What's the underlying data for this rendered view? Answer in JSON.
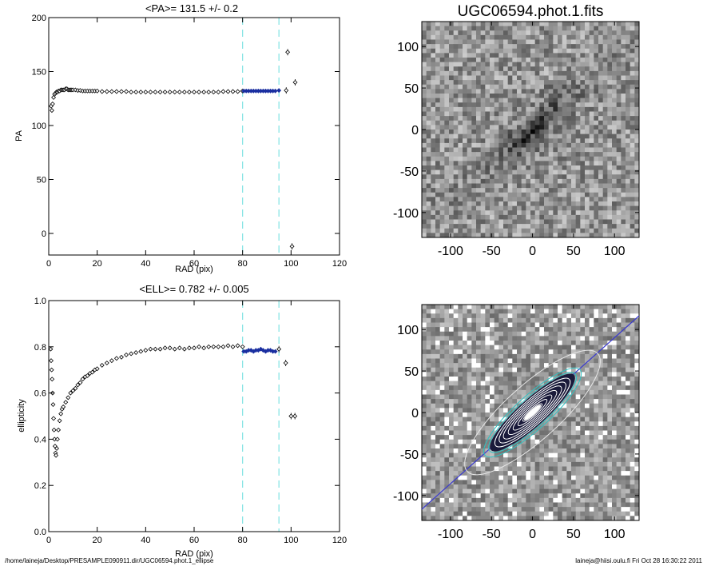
{
  "footer": {
    "path": "/home/laineja/Desktop/PRESAMPLE090911.dir/UGC06594.phot.1_ellipse",
    "stamp": "laineja@hiisi.oulu.fi  Fri Oct 28 16:30:22 2011"
  },
  "colors": {
    "marker": "#000000",
    "highlight": "#1a2fa0",
    "dash": "#7fe3e3",
    "isophote": "#2ec4c4",
    "guide": "#3a3ad0"
  },
  "chart_data": [
    {
      "id": "pa",
      "type": "scatter",
      "title": "<PA>= 131.5 +/-   0.2",
      "xlabel": "RAD (pix)",
      "ylabel": "PA",
      "xlim": [
        0,
        120
      ],
      "ylim": [
        -20,
        200
      ],
      "xticks": [
        "0",
        "20",
        "40",
        "60",
        "80",
        "100",
        "120"
      ],
      "yticks": [
        "0",
        "50",
        "100",
        "150",
        "200"
      ],
      "vlines": [
        80,
        95
      ],
      "series": [
        {
          "x": [
            1,
            1.3,
            1.6,
            2,
            2.4,
            2.8,
            3.2,
            3.6,
            4,
            4.5,
            5,
            5.5,
            6,
            6.5,
            7,
            7.5,
            8,
            8.5,
            9,
            9.5,
            10,
            11,
            12,
            13,
            14,
            15,
            16,
            17,
            18,
            19,
            20,
            22,
            24,
            26,
            28,
            30,
            32,
            34,
            36,
            38,
            40,
            42,
            44,
            46,
            48,
            50,
            52,
            54,
            56,
            58,
            60,
            62,
            64,
            66,
            68,
            70,
            72,
            74,
            76,
            78,
            80
          ],
          "y": [
            118,
            114,
            120,
            126,
            129,
            130,
            131,
            131,
            132,
            132,
            133,
            133,
            133,
            133,
            134,
            134,
            133,
            133,
            133,
            133,
            133,
            133,
            132.5,
            132.5,
            132,
            132,
            132,
            132,
            132,
            132,
            132,
            131.5,
            131.5,
            131.5,
            131.5,
            131.5,
            131.5,
            131,
            131,
            131,
            131,
            131,
            131,
            131,
            131,
            131,
            131,
            131,
            131,
            131,
            131,
            131,
            131,
            131,
            131,
            131,
            131.5,
            131.5,
            131.5,
            131.5,
            132
          ]
        },
        {
          "x": [
            80.5,
            81.5,
            82.5,
            83.5,
            84.5,
            85.5,
            86.5,
            87.5,
            88.5,
            89.5,
            90.5,
            91.5,
            92.5,
            93.5,
            95
          ],
          "y": [
            132,
            132,
            132,
            132,
            132,
            132,
            132,
            132,
            132,
            132,
            132,
            132,
            132,
            132,
            132.5
          ]
        },
        {
          "x": [
            98,
            98.6,
            100.4,
            101.7
          ],
          "y": [
            132.5,
            168,
            -12,
            140
          ]
        }
      ]
    },
    {
      "id": "ell",
      "type": "scatter",
      "title": "<ELL>= 0.782 +/-  0.005",
      "xlabel": "RAD (pix)",
      "ylabel": "ellipticity",
      "xlim": [
        0,
        120
      ],
      "ylim": [
        0,
        1
      ],
      "xticks": [
        "0",
        "20",
        "40",
        "60",
        "80",
        "100",
        "120"
      ],
      "yticks": [
        "0.0",
        "0.2",
        "0.4",
        "0.6",
        "0.8",
        "1.0"
      ],
      "vlines": [
        80,
        95
      ],
      "series": [
        {
          "x": [
            0.8,
            1,
            1.2,
            1.4,
            1.6,
            1.8,
            2,
            2.2,
            2.4,
            2.6,
            2.8,
            3,
            3.3,
            3.6,
            4,
            4.5,
            5,
            5.5,
            6,
            7,
            8,
            9,
            10,
            11,
            12,
            13,
            14,
            15,
            16,
            17,
            18,
            19,
            20,
            22,
            24,
            26,
            28,
            30,
            32,
            34,
            36,
            38,
            40,
            42,
            44,
            46,
            48,
            50,
            52,
            54,
            56,
            58,
            60,
            62,
            64,
            66,
            68,
            70,
            72,
            74,
            76,
            78,
            80
          ],
          "y": [
            0.79,
            0.74,
            0.7,
            0.66,
            0.6,
            0.55,
            0.49,
            0.44,
            0.4,
            0.37,
            0.34,
            0.33,
            0.36,
            0.4,
            0.44,
            0.48,
            0.51,
            0.53,
            0.54,
            0.56,
            0.58,
            0.6,
            0.61,
            0.62,
            0.635,
            0.645,
            0.66,
            0.67,
            0.675,
            0.685,
            0.69,
            0.7,
            0.705,
            0.72,
            0.73,
            0.74,
            0.75,
            0.755,
            0.765,
            0.77,
            0.775,
            0.78,
            0.785,
            0.79,
            0.79,
            0.79,
            0.795,
            0.795,
            0.79,
            0.795,
            0.79,
            0.795,
            0.795,
            0.8,
            0.795,
            0.8,
            0.8,
            0.8,
            0.8,
            0.805,
            0.8,
            0.805,
            0.8
          ]
        },
        {
          "x": [
            80.5,
            81.5,
            82.5,
            83.5,
            84.5,
            85.5,
            86.5,
            87.5,
            88.5,
            89.5,
            90.5,
            91.5,
            92.5,
            93.5
          ],
          "y": [
            0.78,
            0.78,
            0.785,
            0.785,
            0.78,
            0.785,
            0.785,
            0.79,
            0.785,
            0.78,
            0.785,
            0.785,
            0.78,
            0.78
          ]
        },
        {
          "x": [
            95,
            97.8,
            100,
            101.6
          ],
          "y": [
            0.79,
            0.73,
            0.5,
            0.5
          ]
        }
      ]
    },
    {
      "id": "image",
      "type": "heatmap",
      "title": "UGC06594.phot.1.fits",
      "xlim": [
        -135,
        130
      ],
      "ylim": [
        -130,
        130
      ],
      "xticks": [
        "-100",
        "-50",
        "0",
        "50",
        "100"
      ],
      "yticks": [
        "-100",
        "-50",
        "0",
        "50",
        "100"
      ]
    },
    {
      "id": "model",
      "type": "heatmap",
      "title": "",
      "xlim": [
        -135,
        130
      ],
      "ylim": [
        -130,
        130
      ],
      "xticks": [
        "-100",
        "-50",
        "0",
        "50",
        "100"
      ],
      "yticks": [
        "-100",
        "-50",
        "0",
        "50",
        "100"
      ]
    }
  ]
}
